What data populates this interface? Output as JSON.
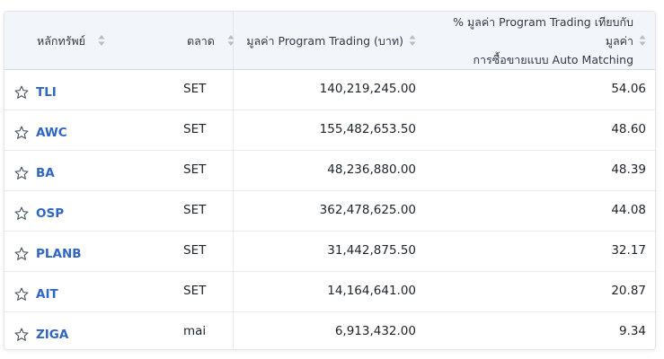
{
  "table": {
    "columns": [
      {
        "key": "symbol",
        "label": "หลักทรัพย์"
      },
      {
        "key": "market",
        "label": "ตลาด"
      },
      {
        "key": "program_value",
        "label": "มูลค่า Program Trading (บาท)"
      },
      {
        "key": "program_pct",
        "label_line1": "% มูลค่า Program Trading เทียบกับมูลค่า",
        "label_line2": "การซื้อขายแบบ Auto Matching"
      }
    ],
    "rows": [
      {
        "symbol": "TLI",
        "market": "SET",
        "program_value": "140,219,245.00",
        "program_pct": "54.06"
      },
      {
        "symbol": "AWC",
        "market": "SET",
        "program_value": "155,482,653.50",
        "program_pct": "48.60"
      },
      {
        "symbol": "BA",
        "market": "SET",
        "program_value": "48,236,880.00",
        "program_pct": "48.39"
      },
      {
        "symbol": "OSP",
        "market": "SET",
        "program_value": "362,478,625.00",
        "program_pct": "44.08"
      },
      {
        "symbol": "PLANB",
        "market": "SET",
        "program_value": "31,442,875.50",
        "program_pct": "32.17"
      },
      {
        "symbol": "AIT",
        "market": "SET",
        "program_value": "14,164,641.00",
        "program_pct": "20.87"
      },
      {
        "symbol": "ZIGA",
        "market": "mai",
        "program_value": "6,913,432.00",
        "program_pct": "9.34"
      }
    ]
  },
  "colors": {
    "header_bg": "#f2f5f9",
    "symbol_link": "#2f66c4",
    "border": "#e2e6ec"
  },
  "icons": {
    "favorite": "star-outline-icon",
    "sort": "sort-arrows-icon"
  }
}
